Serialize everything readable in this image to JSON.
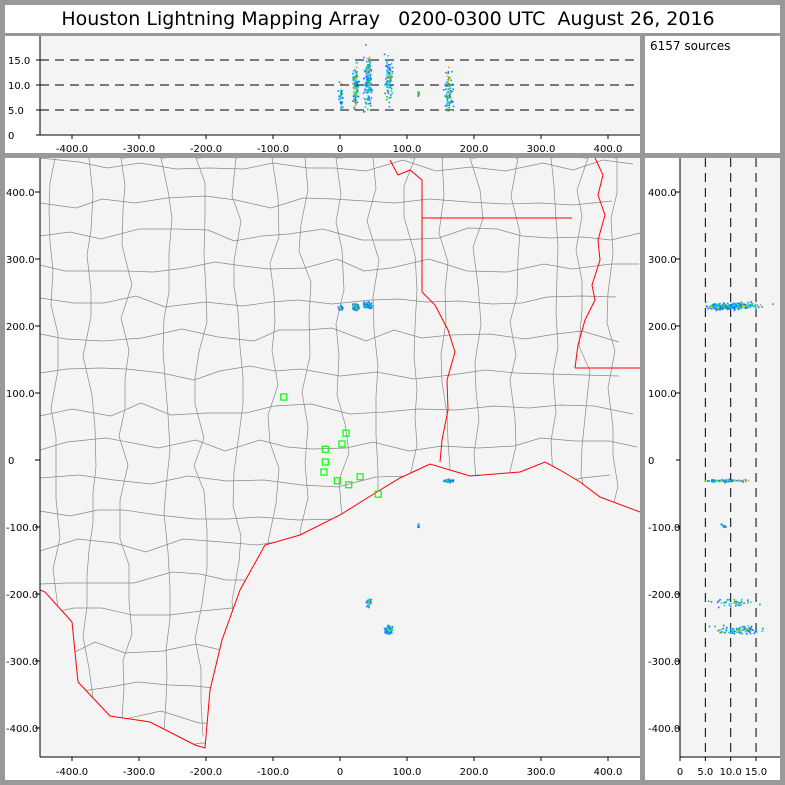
{
  "title": "Houston Lightning Mapping Array   0200-0300 UTC  August 26, 2016",
  "source_count": "6157 sources",
  "colors": {
    "coast": "#ff0000",
    "county": "#888888",
    "station": "#00ff00",
    "plot_bg": "#f4f4f4",
    "frame": "#999999"
  },
  "chart_data": [
    {
      "type": "scatter",
      "name": "altitude-vs-east-west",
      "xlabel": "",
      "ylabel": "",
      "xlim": [
        -450,
        450
      ],
      "ylim": [
        0,
        20
      ],
      "xticks": [
        {
          "v": -400,
          "label": "-400.0"
        },
        {
          "v": -300,
          "label": "-300.0"
        },
        {
          "v": -200,
          "label": "-200.0"
        },
        {
          "v": -100,
          "label": "-100.0"
        },
        {
          "v": 0,
          "label": "0"
        },
        {
          "v": 100,
          "label": "100.0"
        },
        {
          "v": 200,
          "label": "200.0"
        },
        {
          "v": 300,
          "label": "300.0"
        },
        {
          "v": 400,
          "label": "400.0"
        }
      ],
      "yticks": [
        {
          "v": 0,
          "label": "0"
        },
        {
          "v": 5,
          "label": "5.0"
        },
        {
          "v": 10,
          "label": "10.0"
        },
        {
          "v": 15,
          "label": "15.0"
        }
      ],
      "reference_lines": [
        5,
        10,
        15
      ]
    },
    {
      "type": "scatter",
      "name": "plan-view-map",
      "xlim": [
        -450,
        450
      ],
      "ylim": [
        -440,
        450
      ],
      "xticks": [
        {
          "v": -400,
          "label": "-400.0"
        },
        {
          "v": -300,
          "label": "-300.0"
        },
        {
          "v": -200,
          "label": "-200.0"
        },
        {
          "v": -100,
          "label": "-100.0"
        },
        {
          "v": 0,
          "label": "0"
        },
        {
          "v": 100,
          "label": "100.0"
        },
        {
          "v": 200,
          "label": "200.0"
        },
        {
          "v": 300,
          "label": "300.0"
        },
        {
          "v": 400,
          "label": "400.0"
        }
      ],
      "yticks": [
        {
          "v": 400,
          "label": "400.0"
        },
        {
          "v": 300,
          "label": "300.0"
        },
        {
          "v": 200,
          "label": "200.0"
        },
        {
          "v": 100,
          "label": "100.0"
        },
        {
          "v": 0,
          "label": "0"
        },
        {
          "v": -100,
          "label": "-100.0"
        },
        {
          "v": -200,
          "label": "-200.0"
        },
        {
          "v": -300,
          "label": "-300.0"
        },
        {
          "v": -400,
          "label": "-400.0"
        }
      ],
      "stations_km": [
        [
          -84,
          94
        ],
        [
          -22,
          16
        ],
        [
          9,
          40
        ],
        [
          3,
          24
        ],
        [
          -22,
          -3
        ],
        [
          -24,
          -18
        ],
        [
          -4,
          -31
        ],
        [
          13,
          -37
        ],
        [
          30,
          -25
        ],
        [
          57,
          -51
        ]
      ]
    },
    {
      "type": "scatter",
      "name": "north-south-vs-altitude",
      "xlim": [
        0,
        20
      ],
      "ylim": [
        -440,
        450
      ],
      "xticks": [
        {
          "v": 0,
          "label": "0"
        },
        {
          "v": 5,
          "label": "5.0"
        },
        {
          "v": 10,
          "label": "10.0"
        },
        {
          "v": 15,
          "label": "15.0"
        }
      ],
      "yticks": [
        {
          "v": 400,
          "label": "400.0"
        },
        {
          "v": 300,
          "label": "300.0"
        },
        {
          "v": 200,
          "label": "200.0"
        },
        {
          "v": 100,
          "label": "100.0"
        },
        {
          "v": 0,
          "label": "0"
        },
        {
          "v": -100,
          "label": "-100.0"
        },
        {
          "v": -200,
          "label": "-200.0"
        },
        {
          "v": -300,
          "label": "-300.0"
        },
        {
          "v": -400,
          "label": "-400.0"
        }
      ],
      "reference_lines": [
        5,
        10,
        15
      ]
    }
  ],
  "source_clusters": [
    {
      "x": 0,
      "y": 228,
      "sx": 3,
      "sy": 3,
      "alt": [
        4,
        11.5
      ],
      "n": 35
    },
    {
      "x": 22,
      "y": 230,
      "sx": 4,
      "sy": 4,
      "alt": [
        4,
        15.5
      ],
      "n": 110
    },
    {
      "x": 40,
      "y": 232,
      "sx": 5,
      "sy": 4,
      "alt": [
        3.5,
        19
      ],
      "n": 110
    },
    {
      "x": 161,
      "y": -30,
      "sx": 5,
      "sy": 2,
      "alt": [
        3,
        14.5
      ],
      "n": 90
    },
    {
      "x": 116,
      "y": -97,
      "sx": 1,
      "sy": 2,
      "alt": [
        7,
        9
      ],
      "n": 10
    },
    {
      "x": 42,
      "y": -212,
      "sx": 3,
      "sy": 5,
      "alt": [
        3,
        17
      ],
      "n": 45
    },
    {
      "x": 72,
      "y": -253,
      "sx": 5,
      "sy": 6,
      "alt": [
        4,
        19
      ],
      "n": 90
    }
  ],
  "density_colors": [
    "#1e6fff",
    "#00a0ff",
    "#00e0e0",
    "#00d040",
    "#c0e000",
    "#ffa000"
  ]
}
